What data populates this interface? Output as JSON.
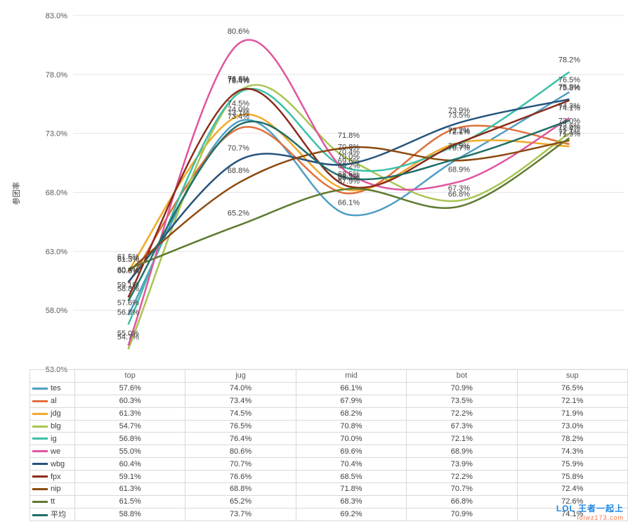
{
  "chart_data": {
    "type": "line",
    "title": "",
    "xlabel": "",
    "ylabel": "参团率",
    "ylim": [
      53.0,
      83.0
    ],
    "y_ticks": [
      "53.0%",
      "58.0%",
      "63.0%",
      "68.0%",
      "73.0%",
      "78.0%",
      "83.0%"
    ],
    "grid": true,
    "legend": "data-table",
    "categories": [
      "top",
      "jug",
      "mid",
      "bot",
      "sup"
    ],
    "series": [
      {
        "name": "tes",
        "color": "#4f9ec4",
        "values": [
          57.6,
          74.0,
          66.1,
          70.9,
          76.5
        ],
        "labels": [
          "57.6%",
          "74.0%",
          "66.1%",
          "70.9%",
          "76.5%"
        ]
      },
      {
        "name": "al",
        "color": "#e0703c",
        "values": [
          60.3,
          73.4,
          67.9,
          73.5,
          72.1
        ],
        "labels": [
          "60.3%",
          "73.4%",
          "67.9%",
          "73.5%",
          "72.1%"
        ]
      },
      {
        "name": "jdg",
        "color": "#f0a928",
        "values": [
          61.3,
          74.5,
          68.2,
          72.2,
          71.9
        ],
        "labels": [
          "61.3%",
          "74.5%",
          "68.2%",
          "72.2%",
          "71.9%"
        ]
      },
      {
        "name": "blg",
        "color": "#a8c450",
        "values": [
          54.7,
          76.5,
          70.8,
          67.3,
          73.0
        ],
        "labels": [
          "54.7%",
          "76.5%",
          "70.8%",
          "67.3%",
          "73.0%"
        ]
      },
      {
        "name": "ig",
        "color": "#3cc0a8",
        "values": [
          56.8,
          76.4,
          70.0,
          72.1,
          78.2
        ],
        "labels": [
          "56.8%",
          "76.4%",
          "70.0%",
          "72.1%",
          "78.2%"
        ]
      },
      {
        "name": "we",
        "color": "#e0559f",
        "values": [
          55.0,
          80.6,
          69.6,
          68.9,
          74.3
        ],
        "labels": [
          "55.0%",
          "80.6%",
          "69.6%",
          "68.9%",
          "74.3%"
        ]
      },
      {
        "name": "wbg",
        "color": "#26547c",
        "values": [
          60.4,
          70.7,
          70.4,
          73.9,
          75.9
        ],
        "labels": [
          "60.4%",
          "70.7%",
          "70.4%",
          "73.9%",
          "75.9%"
        ]
      },
      {
        "name": "fpx",
        "color": "#8b2a1a",
        "values": [
          59.1,
          76.6,
          68.5,
          72.2,
          75.8
        ],
        "labels": [
          "59.1%",
          "76.6%",
          "68.5%",
          "72.2%",
          "75.8%"
        ]
      },
      {
        "name": "nip",
        "color": "#8c4a10",
        "values": [
          61.3,
          68.8,
          71.8,
          70.7,
          72.4
        ],
        "labels": [
          "61.3%",
          "68.8%",
          "71.8%",
          "70.7%",
          "72.4%"
        ]
      },
      {
        "name": "tt",
        "color": "#5e7a30",
        "values": [
          61.5,
          65.2,
          68.3,
          66.8,
          72.6
        ],
        "labels": [
          "61.5%",
          "65.2%",
          "68.3%",
          "66.8%",
          "72.6%"
        ]
      },
      {
        "name": "平均",
        "color": "#1e6f66",
        "values": [
          58.8,
          73.7,
          69.2,
          70.9,
          74.1
        ],
        "labels": [
          "58.8%",
          "73.7%",
          "69.2%",
          "70.9%",
          "74.1%"
        ]
      }
    ]
  },
  "watermark": {
    "brand": "LOL 王者一起上",
    "site": "lolwz173.com"
  }
}
